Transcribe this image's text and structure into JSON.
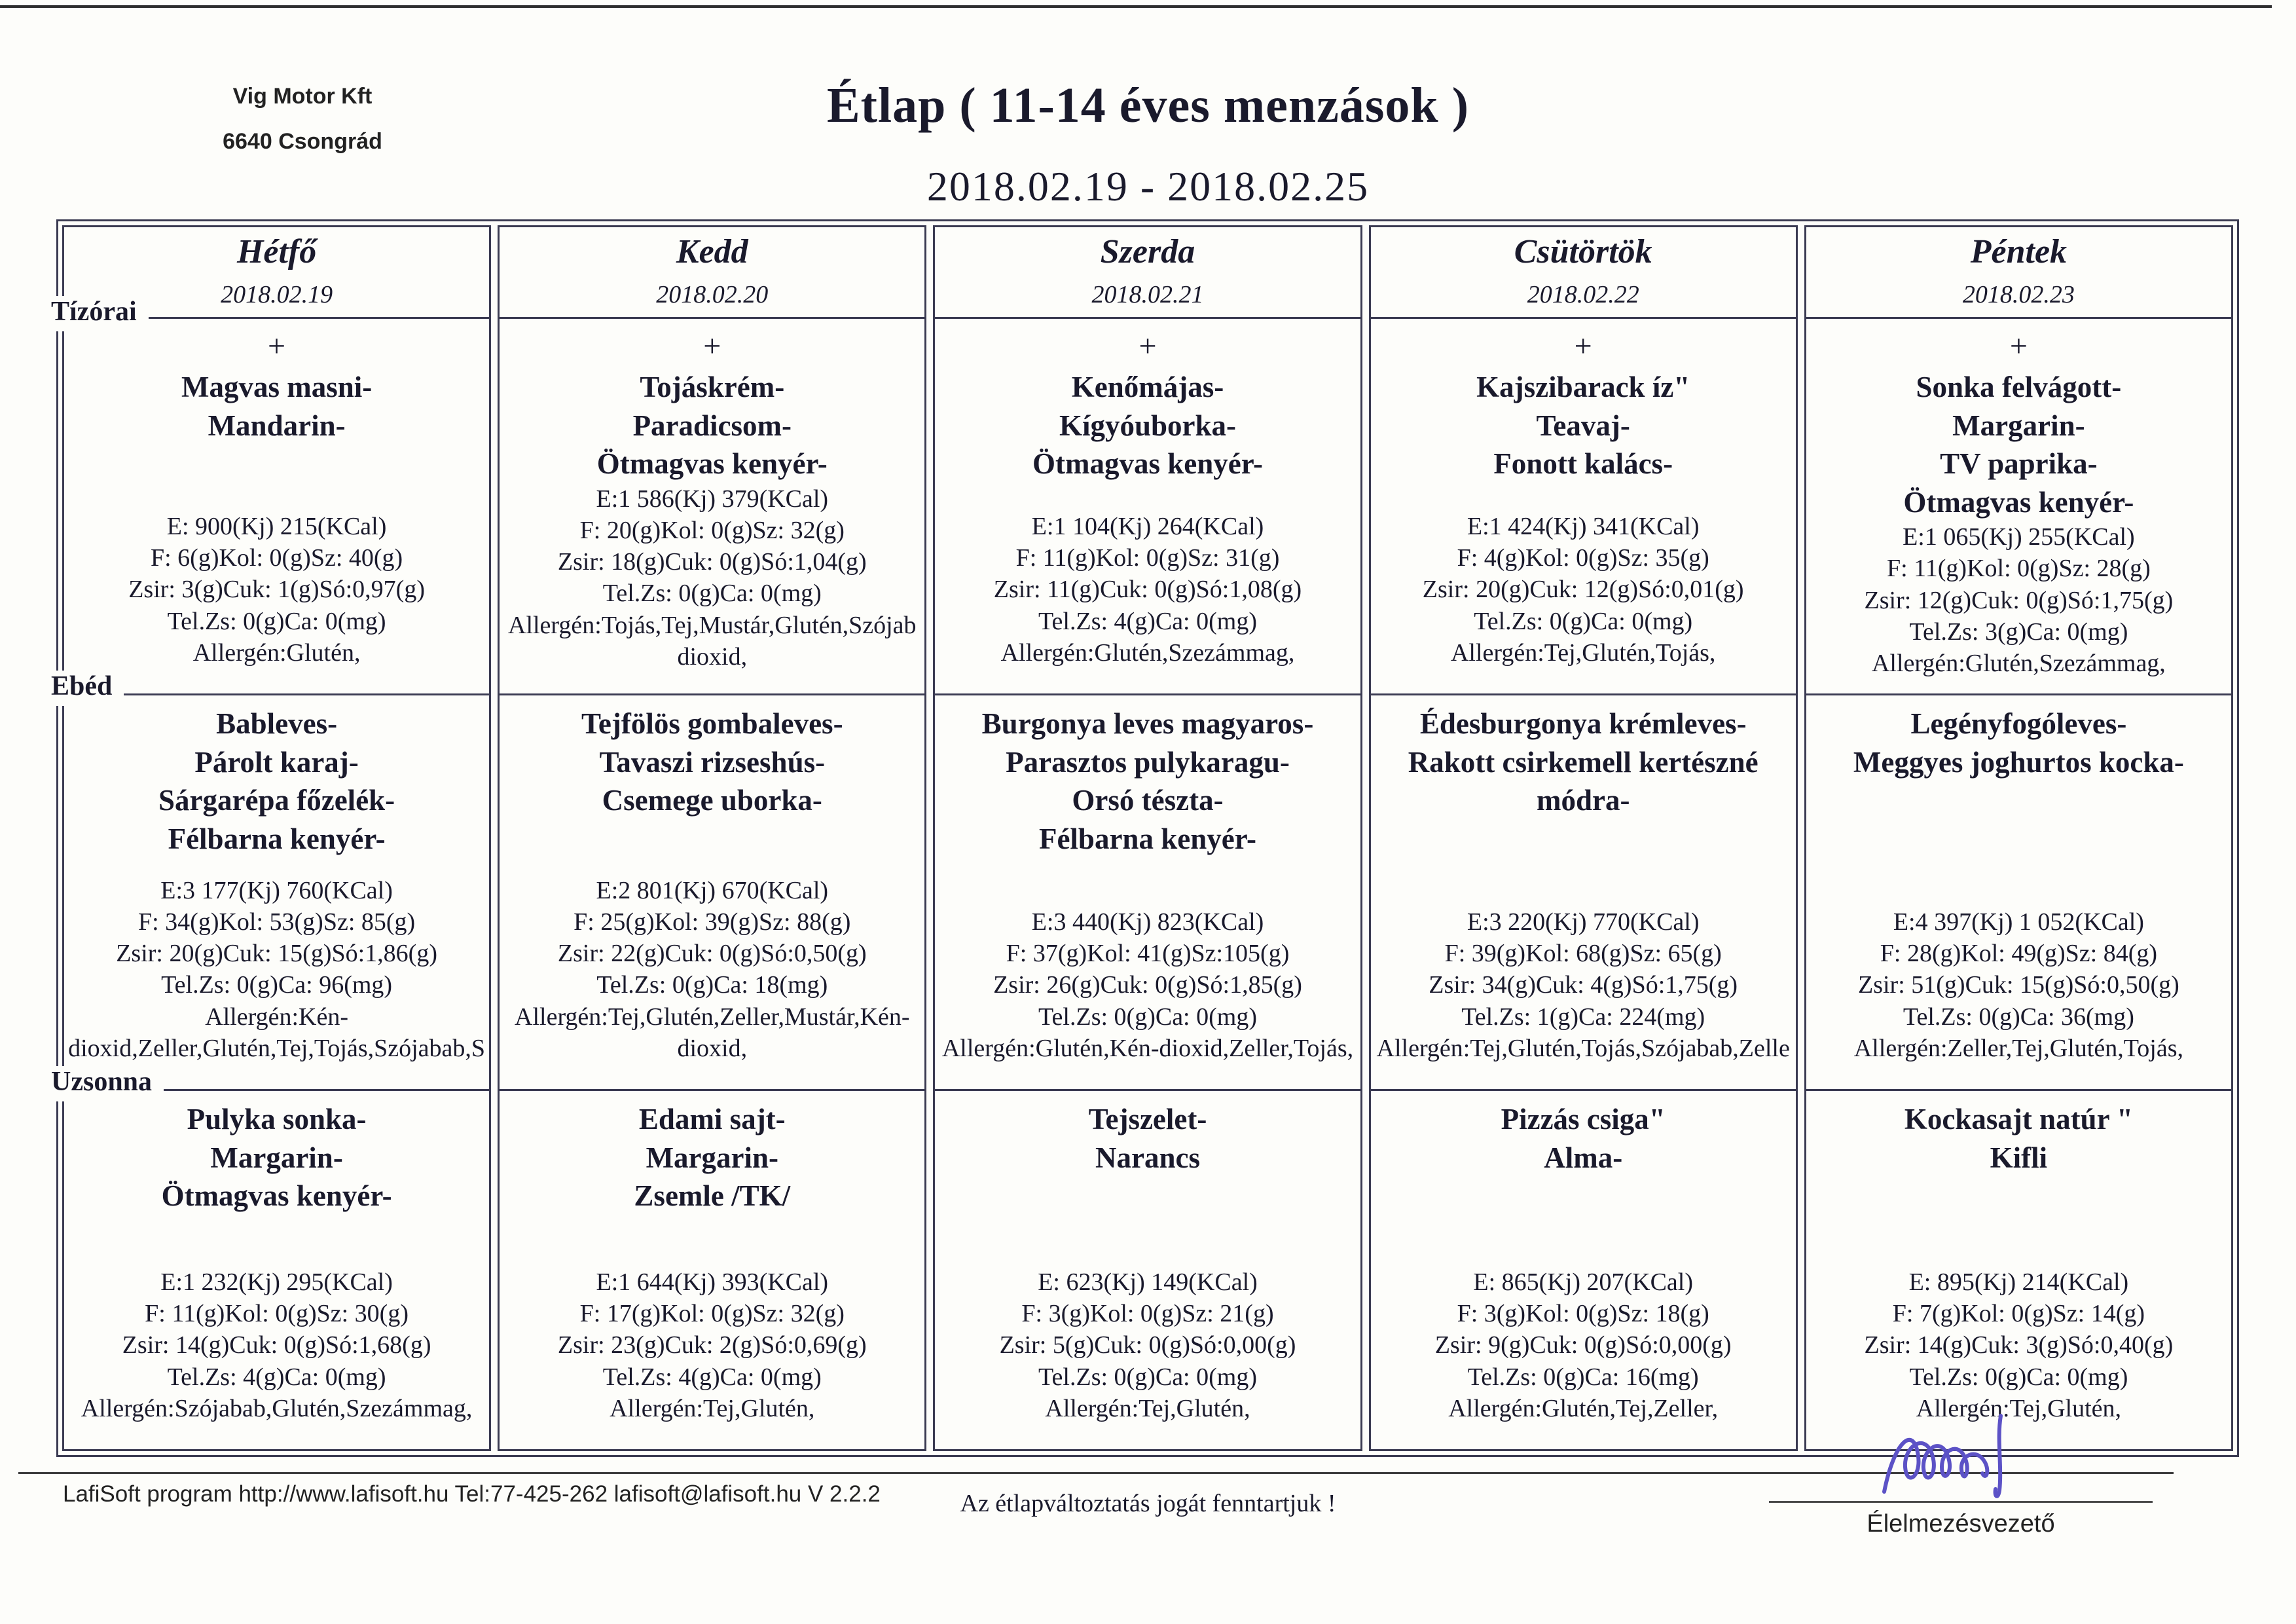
{
  "header": {
    "company_name": "Vig Motor Kft",
    "company_city": "6640 Csongrád",
    "title": "Étlap ( 11-14 éves menzások )",
    "date_range": "2018.02.19 - 2018.02.25"
  },
  "section_labels": {
    "tizorai": "Tízórai",
    "ebed": "Ebéd",
    "uzsonna": "Uzsonna"
  },
  "days": [
    {
      "name": "Hétfő",
      "date": "2018.02.19",
      "tizorai": {
        "menu": [
          "+",
          "Magvas masni-",
          "Mandarin-"
        ],
        "nutrition": [
          "E: 900(Kj) 215(KCal)",
          "F: 6(g)Kol: 0(g)Sz: 40(g)",
          "Zsir: 3(g)Cuk: 1(g)Só:0,97(g)",
          "Tel.Zs: 0(g)Ca: 0(mg)",
          "Allergén:Glutén,"
        ]
      },
      "ebed": {
        "menu": [
          "Bableves-",
          "Párolt karaj-",
          "Sárgarépa főzelék-",
          "Félbarna kenyér-"
        ],
        "nutrition": [
          "E:3 177(Kj) 760(KCal)",
          "F: 34(g)Kol: 53(g)Sz: 85(g)",
          "Zsir: 20(g)Cuk: 15(g)Só:1,86(g)",
          "Tel.Zs: 0(g)Ca: 96(mg)",
          "Allergén:Kén-",
          "dioxid,Zeller,Glutén,Tej,Tojás,Szójabab,S"
        ]
      },
      "uzsonna": {
        "menu": [
          "Pulyka sonka-",
          "Margarin-",
          "Ötmagvas kenyér-"
        ],
        "nutrition": [
          "E:1 232(Kj) 295(KCal)",
          "F: 11(g)Kol: 0(g)Sz: 30(g)",
          "Zsir: 14(g)Cuk: 0(g)Só:1,68(g)",
          "Tel.Zs: 4(g)Ca: 0(mg)",
          "Allergén:Szójabab,Glutén,Szezámmag,"
        ]
      }
    },
    {
      "name": "Kedd",
      "date": "2018.02.20",
      "tizorai": {
        "menu": [
          "+",
          "Tojáskrém-",
          "Paradicsom-",
          "Ötmagvas kenyér-"
        ],
        "nutrition": [
          "E:1 586(Kj) 379(KCal)",
          "F: 20(g)Kol: 0(g)Sz: 32(g)",
          "Zsir: 18(g)Cuk: 0(g)Só:1,04(g)",
          "Tel.Zs: 0(g)Ca: 0(mg)",
          "Allergén:Tojás,Tej,Mustár,Glutén,Szójab",
          "dioxid,"
        ]
      },
      "ebed": {
        "menu": [
          "Tejfölös gombaleves-",
          "Tavaszi rizseshús-",
          "Csemege uborka-"
        ],
        "nutrition": [
          "E:2 801(Kj) 670(KCal)",
          "F: 25(g)Kol: 39(g)Sz: 88(g)",
          "Zsir: 22(g)Cuk: 0(g)Só:0,50(g)",
          "Tel.Zs: 0(g)Ca: 18(mg)",
          "Allergén:Tej,Glutén,Zeller,Mustár,Kén-",
          "dioxid,"
        ]
      },
      "uzsonna": {
        "menu": [
          "Edami sajt-",
          "Margarin-",
          "Zsemle /TK/"
        ],
        "nutrition": [
          "E:1 644(Kj) 393(KCal)",
          "F: 17(g)Kol: 0(g)Sz: 32(g)",
          "Zsir: 23(g)Cuk: 2(g)Só:0,69(g)",
          "Tel.Zs: 4(g)Ca: 0(mg)",
          "Allergén:Tej,Glutén,"
        ]
      }
    },
    {
      "name": "Szerda",
      "date": "2018.02.21",
      "tizorai": {
        "menu": [
          "+",
          "Kenőmájas-",
          "Kígyóuborka-",
          "Ötmagvas kenyér-"
        ],
        "nutrition": [
          "E:1 104(Kj) 264(KCal)",
          "F: 11(g)Kol: 0(g)Sz: 31(g)",
          "Zsir: 11(g)Cuk: 0(g)Só:1,08(g)",
          "Tel.Zs: 4(g)Ca: 0(mg)",
          "Allergén:Glutén,Szezámmag,"
        ]
      },
      "ebed": {
        "menu": [
          "Burgonya leves magyaros-",
          "Parasztos pulykaragu-",
          "Orsó tészta-",
          "Félbarna kenyér-"
        ],
        "nutrition": [
          "E:3 440(Kj) 823(KCal)",
          "F: 37(g)Kol: 41(g)Sz:105(g)",
          "Zsir: 26(g)Cuk: 0(g)Só:1,85(g)",
          "Tel.Zs: 0(g)Ca: 0(mg)",
          "Allergén:Glutén,Kén-dioxid,Zeller,Tojás,"
        ]
      },
      "uzsonna": {
        "menu": [
          "Tejszelet-",
          "Narancs"
        ],
        "nutrition": [
          "E: 623(Kj) 149(KCal)",
          "F: 3(g)Kol: 0(g)Sz: 21(g)",
          "Zsir: 5(g)Cuk: 0(g)Só:0,00(g)",
          "Tel.Zs: 0(g)Ca: 0(mg)",
          "Allergén:Tej,Glutén,"
        ]
      }
    },
    {
      "name": "Csütörtök",
      "date": "2018.02.22",
      "tizorai": {
        "menu": [
          "+",
          "Kajszibarack íz\"",
          "Teavaj-",
          "Fonott kalács-"
        ],
        "nutrition": [
          "E:1 424(Kj) 341(KCal)",
          "F: 4(g)Kol: 0(g)Sz: 35(g)",
          "Zsir: 20(g)Cuk: 12(g)Só:0,01(g)",
          "Tel.Zs: 0(g)Ca: 0(mg)",
          "Allergén:Tej,Glutén,Tojás,"
        ]
      },
      "ebed": {
        "menu": [
          "Édesburgonya krémleves-",
          "Rakott csirkemell kertészné",
          "módra-"
        ],
        "nutrition": [
          "E:3 220(Kj) 770(KCal)",
          "F: 39(g)Kol: 68(g)Sz: 65(g)",
          "Zsir: 34(g)Cuk: 4(g)Só:1,75(g)",
          "Tel.Zs: 1(g)Ca: 224(mg)",
          "Allergén:Tej,Glutén,Tojás,Szójabab,Zelle"
        ]
      },
      "uzsonna": {
        "menu": [
          "Pizzás csiga\"",
          "Alma-"
        ],
        "nutrition": [
          "E: 865(Kj) 207(KCal)",
          "F: 3(g)Kol: 0(g)Sz: 18(g)",
          "Zsir: 9(g)Cuk: 0(g)Só:0,00(g)",
          "Tel.Zs: 0(g)Ca: 16(mg)",
          "Allergén:Glutén,Tej,Zeller,"
        ]
      }
    },
    {
      "name": "Péntek",
      "date": "2018.02.23",
      "tizorai": {
        "menu": [
          "+",
          "Sonka felvágott-",
          "Margarin-",
          "TV paprika-",
          "Ötmagvas kenyér-"
        ],
        "nutrition": [
          "E:1 065(Kj) 255(KCal)",
          "F: 11(g)Kol: 0(g)Sz: 28(g)",
          "Zsir: 12(g)Cuk: 0(g)Só:1,75(g)",
          "Tel.Zs: 3(g)Ca: 0(mg)",
          "Allergén:Glutén,Szezámmag,"
        ]
      },
      "ebed": {
        "menu": [
          "Legényfogóleves-",
          "Meggyes joghurtos kocka-"
        ],
        "nutrition": [
          "E:4 397(Kj) 1 052(KCal)",
          "F: 28(g)Kol: 49(g)Sz: 84(g)",
          "Zsir: 51(g)Cuk: 15(g)Só:0,50(g)",
          "Tel.Zs: 0(g)Ca: 36(mg)",
          "Allergén:Zeller,Tej,Glutén,Tojás,"
        ]
      },
      "uzsonna": {
        "menu": [
          "Kockasajt natúr \"",
          "Kifli"
        ],
        "nutrition": [
          "E: 895(Kj) 214(KCal)",
          "F: 7(g)Kol: 0(g)Sz: 14(g)",
          "Zsir: 14(g)Cuk: 3(g)Só:0,40(g)",
          "Tel.Zs: 0(g)Ca: 0(mg)",
          "Allergén:Tej,Glutén,"
        ]
      }
    }
  ],
  "footer": {
    "program_info": "LafiSoft program  http://www.lafisoft.hu Tel:77-425-262  lafisoft@lafisoft.hu  V 2.2.2",
    "disclaimer": "Az étlapváltoztatás jogát fenntartjuk !",
    "signature_label": "Élelmezésvezető"
  }
}
